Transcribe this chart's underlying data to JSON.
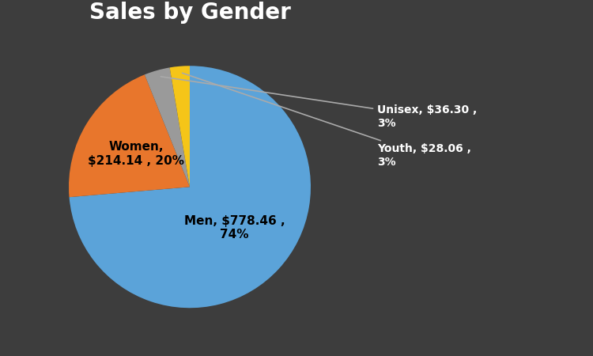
{
  "title": "Sales by Gender",
  "title_fontsize": 20,
  "title_color": "#ffffff",
  "title_fontweight": "bold",
  "background_color": "#3d3d3d",
  "labels": [
    "Men",
    "Women",
    "Unisex",
    "Youth"
  ],
  "values": [
    778.46,
    214.14,
    36.3,
    28.06
  ],
  "percentages": [
    74,
    20,
    3,
    3
  ],
  "colors": [
    "#5ba3d9",
    "#e8762c",
    "#9a9a9a",
    "#f5c518"
  ],
  "figsize": [
    7.5,
    4.5
  ],
  "dpi": 100,
  "startangle": 90
}
